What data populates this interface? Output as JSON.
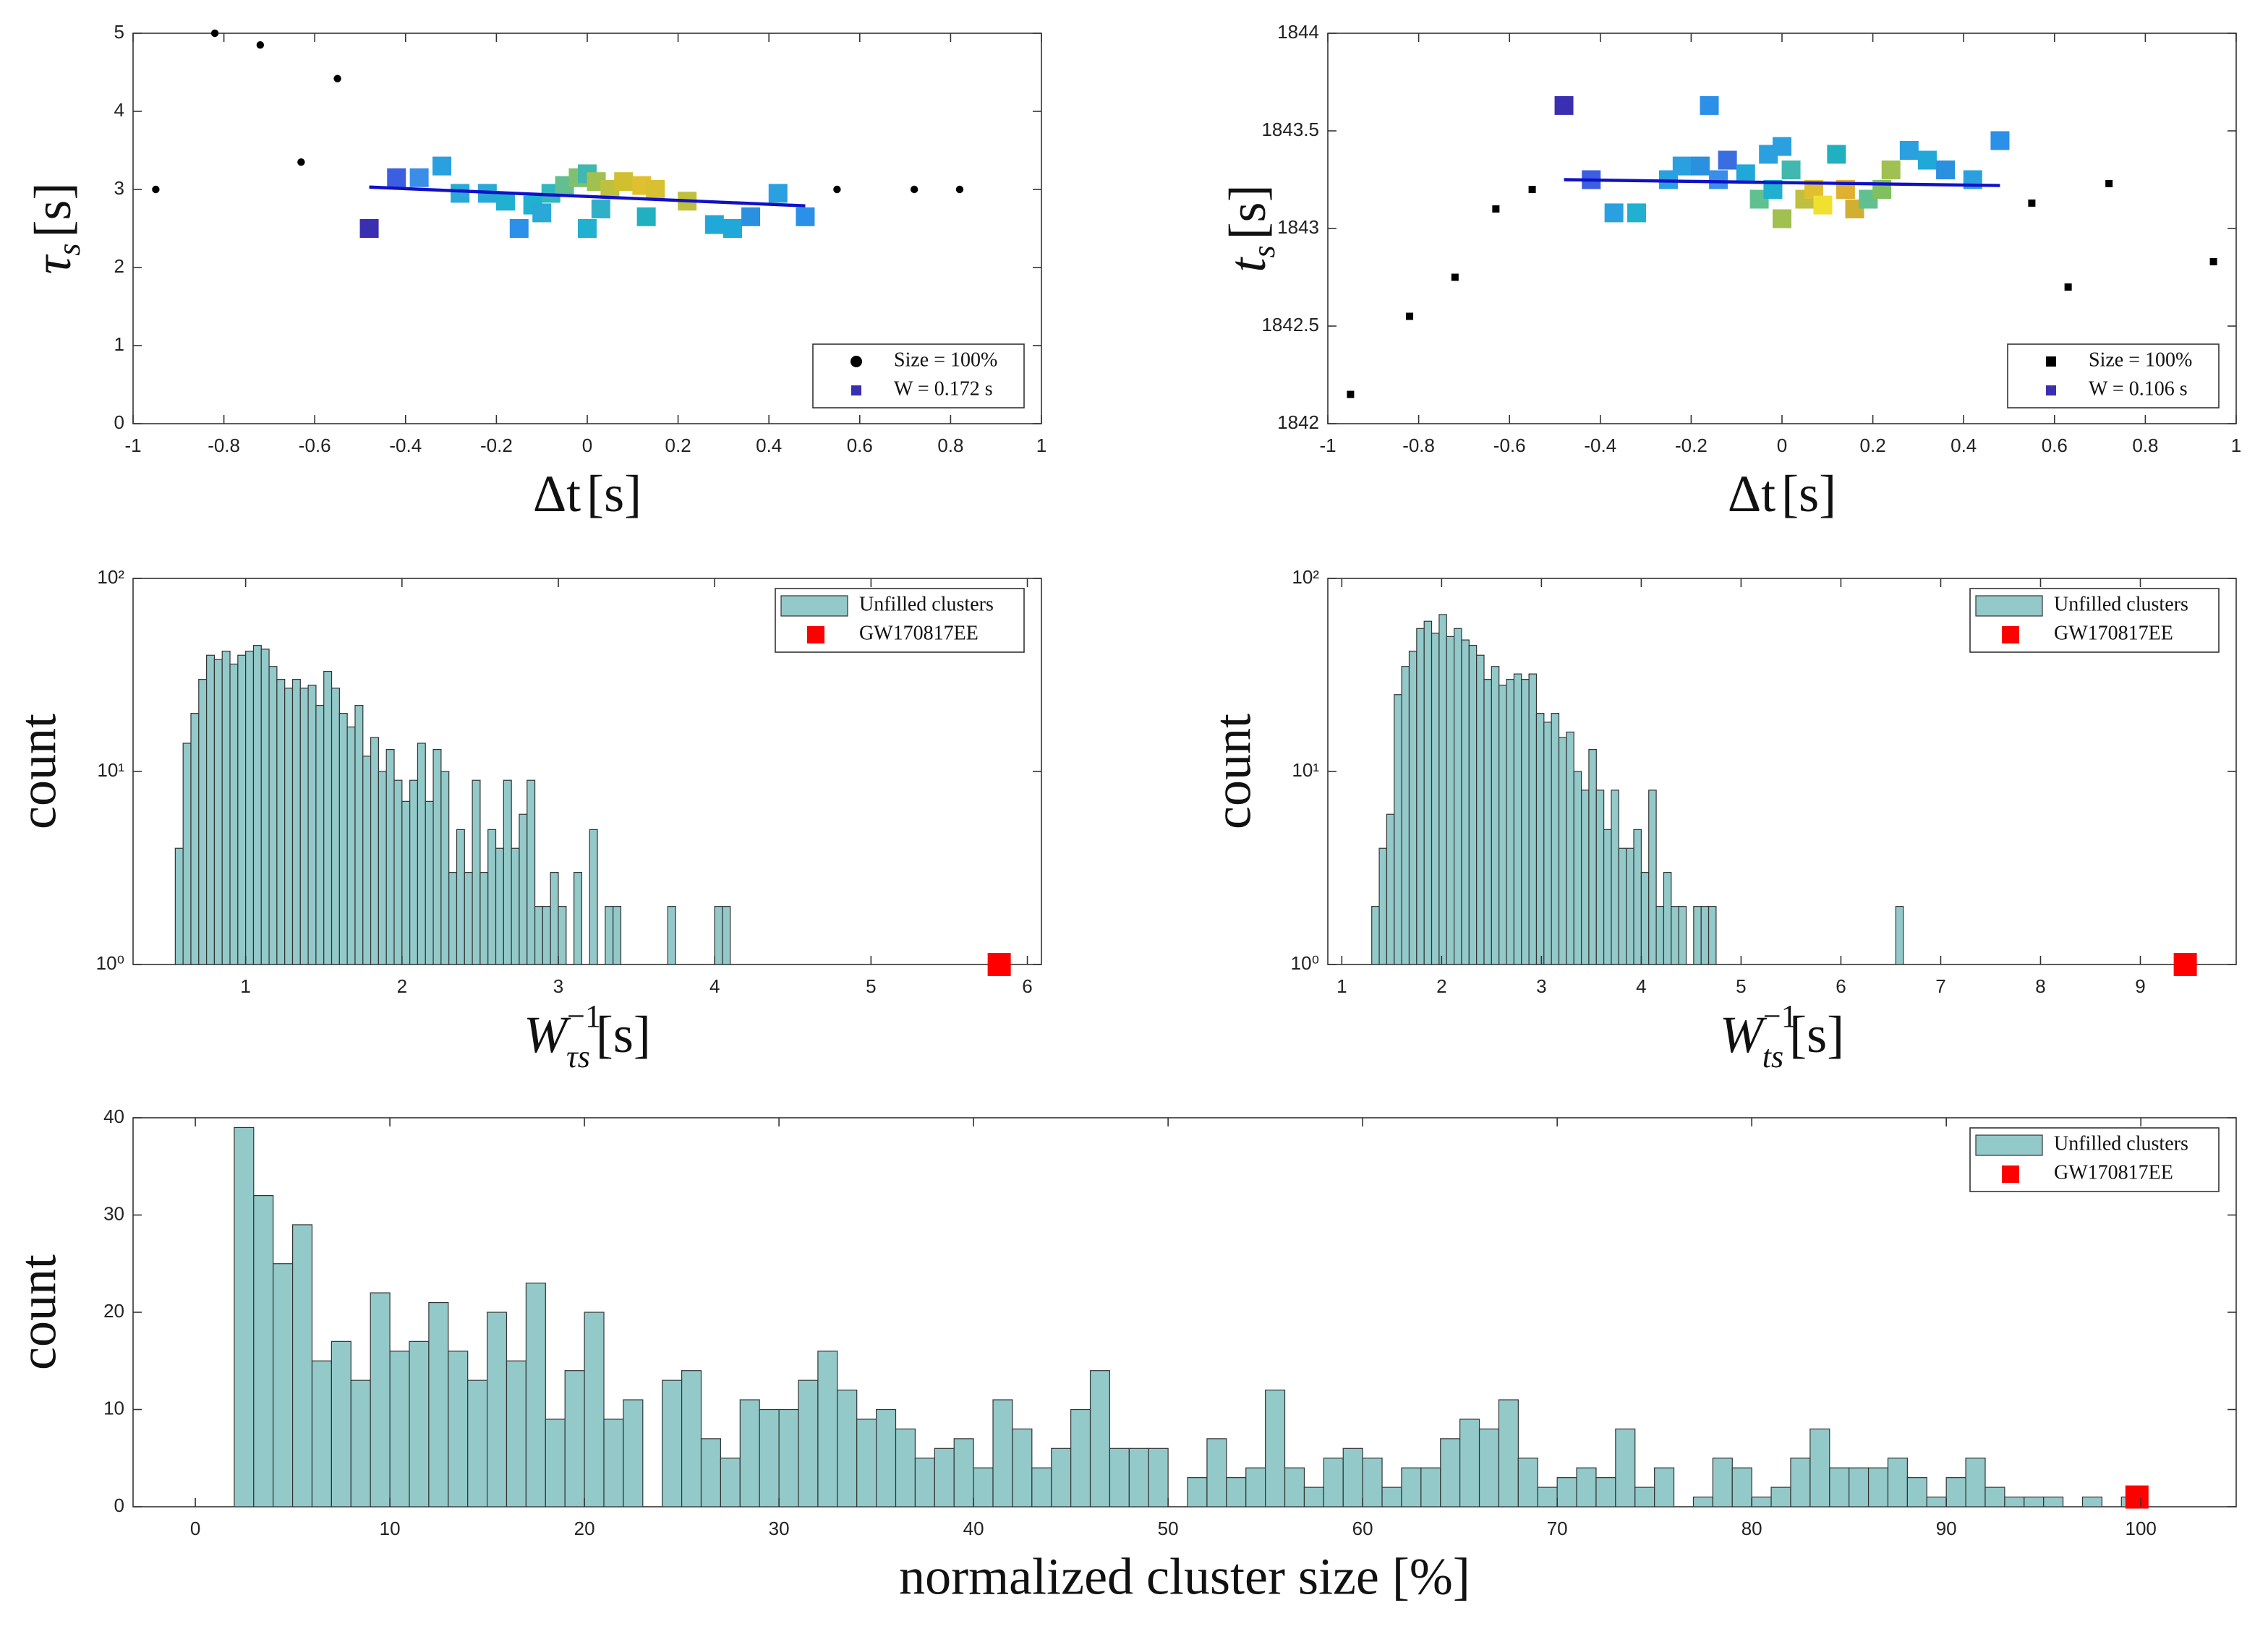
{
  "chart_data": [
    {
      "type": "scatter",
      "xlim": [
        -1,
        1
      ],
      "ylim": [
        0,
        5
      ],
      "xticks": [
        -1,
        -0.8,
        -0.6,
        -0.4,
        -0.2,
        0,
        0.2,
        0.4,
        0.6,
        0.8,
        1
      ],
      "yticks": [
        0,
        1,
        2,
        3,
        4,
        5
      ],
      "xlabel": {
        "text": "Δt",
        "unit": "[s]"
      },
      "ylabel": {
        "text": "τ",
        "sub": "s",
        "unit": "[s]"
      },
      "legend": "lower right",
      "series": [
        {
          "name": "Size = 100%",
          "color": "#000000",
          "marker": "circle",
          "x": [
            -0.95,
            -0.82,
            -0.72,
            -0.63,
            -0.55,
            0.55,
            0.72,
            0.82
          ],
          "y": [
            3.0,
            5.0,
            4.85,
            3.35,
            4.42,
            3.0,
            3.0,
            3.0
          ]
        },
        {
          "name": "W = 0.172 s",
          "color": "#3a2fb0",
          "marker": "square",
          "x": [
            -0.48,
            -0.42,
            -0.37,
            -0.32,
            -0.28,
            -0.22,
            -0.18,
            -0.15,
            -0.12,
            -0.1,
            -0.08,
            -0.05,
            -0.02,
            0,
            0,
            0.02,
            0.03,
            0.05,
            0.08,
            0.12,
            0.13,
            0.15,
            0.22,
            0.28,
            0.32,
            0.36,
            0.42,
            0.48
          ],
          "y": [
            2.5,
            3.15,
            3.15,
            3.3,
            2.95,
            2.95,
            2.85,
            2.5,
            2.8,
            2.7,
            2.95,
            3.05,
            3.15,
            2.5,
            3.2,
            3.1,
            2.75,
            3.0,
            3.1,
            3.05,
            2.65,
            3.0,
            2.85,
            2.55,
            2.5,
            2.65,
            2.95,
            2.65
          ],
          "colors": [
            "#3a2fb0",
            "#3b5fe0",
            "#3a8ee8",
            "#2aa0e0",
            "#2aa8d8",
            "#2aa8d8",
            "#20b0d0",
            "#2a90e8",
            "#20b0d0",
            "#2aa8d8",
            "#30b8c0",
            "#60c090",
            "#80c070",
            "#20b0d0",
            "#40b8b0",
            "#a0c050",
            "#30b0c8",
            "#c0c040",
            "#d0c030",
            "#e0c030",
            "#20b0c0",
            "#d8c030",
            "#c0c040",
            "#20a8d8",
            "#20a8d8",
            "#2a90e0",
            "#2aa0e0",
            "#2a90e8"
          ]
        }
      ],
      "fit": {
        "x": [
          -0.48,
          0.48
        ],
        "y": [
          3.03,
          2.79
        ],
        "color": "#1010c8"
      }
    },
    {
      "type": "scatter",
      "xlim": [
        -1,
        1
      ],
      "ylim": [
        1842,
        1844
      ],
      "xticks": [
        -1,
        -0.8,
        -0.6,
        -0.4,
        -0.2,
        0,
        0.2,
        0.4,
        0.6,
        0.8,
        1
      ],
      "yticks": [
        1842,
        1842.5,
        1843,
        1843.5,
        1844
      ],
      "xlabel": {
        "text": "Δt",
        "unit": "[s]"
      },
      "ylabel": {
        "text": "t",
        "sub": "s",
        "unit": "[s]"
      },
      "legend": "lower right",
      "series": [
        {
          "name": "Size = 100%",
          "color": "#000000",
          "marker": "square",
          "x": [
            -0.95,
            -0.82,
            -0.72,
            -0.63,
            -0.55,
            0.55,
            0.63,
            0.72,
            0.95
          ],
          "y": [
            1842.15,
            1842.55,
            1842.75,
            1843.1,
            1843.2,
            1843.13,
            1842.7,
            1843.23,
            1842.83
          ]
        },
        {
          "name": "W = 0.106 s",
          "color": "#3a2fb0",
          "marker": "square",
          "x": [
            -0.48,
            -0.42,
            -0.37,
            -0.32,
            -0.25,
            -0.22,
            -0.18,
            -0.16,
            -0.14,
            -0.12,
            -0.08,
            -0.05,
            -0.03,
            -0.02,
            0,
            0,
            0.02,
            0.05,
            0.07,
            0.09,
            0.12,
            0.14,
            0.16,
            0.19,
            0.22,
            0.24,
            0.28,
            0.32,
            0.36,
            0.42,
            0.48
          ],
          "y": [
            1843.63,
            1843.25,
            1843.08,
            1843.08,
            1843.25,
            1843.32,
            1843.32,
            1843.63,
            1843.25,
            1843.35,
            1843.28,
            1843.15,
            1843.38,
            1843.2,
            1843.42,
            1843.05,
            1843.3,
            1843.15,
            1843.2,
            1843.12,
            1843.38,
            1843.2,
            1843.1,
            1843.15,
            1843.2,
            1843.3,
            1843.4,
            1843.35,
            1843.3,
            1843.25,
            1843.45
          ],
          "colors": [
            "#3a2fb0",
            "#3b5fe0",
            "#2aa0e0",
            "#20b0d0",
            "#2aa0e0",
            "#2aa0e0",
            "#2a90e0",
            "#2a90e8",
            "#3a8ee8",
            "#3a6ee0",
            "#20a8d8",
            "#60c090",
            "#2aa0e0",
            "#20b0d0",
            "#2aa0e0",
            "#a0c050",
            "#40b8b0",
            "#c0c040",
            "#e0c030",
            "#f0e030",
            "#20b0c0",
            "#e0b030",
            "#d0b030",
            "#60c090",
            "#80c060",
            "#a0c050",
            "#2aa0e0",
            "#20a8d8",
            "#2a90e0",
            "#2aa0e0",
            "#2a90e8"
          ]
        }
      ],
      "fit": {
        "x": [
          -0.48,
          0.48
        ],
        "y": [
          1843.25,
          1843.22
        ],
        "color": "#1010c8"
      }
    },
    {
      "type": "histogram",
      "xlim": [
        0.28,
        6.09
      ],
      "ylim": [
        1,
        100
      ],
      "log_y": true,
      "xticks": [
        1,
        2,
        3,
        4,
        5,
        6
      ],
      "yticks": [
        {
          "value": 1,
          "label": "10⁰"
        },
        {
          "value": 10,
          "label": "10¹"
        },
        {
          "value": 100,
          "label": "10²"
        }
      ],
      "xlabel": {
        "text": "W",
        "sup": "−1",
        "sub": "τs",
        "unit": "[s]"
      },
      "ylabel": "count",
      "legend": "upper right",
      "name": "Unfilled clusters",
      "color": "#93c9c9",
      "bins": [
        0.55,
        0.6,
        0.65,
        0.7,
        0.75,
        0.8,
        0.85,
        0.9,
        0.95,
        1,
        1.05,
        1.1,
        1.15,
        1.2,
        1.25,
        1.3,
        1.35,
        1.4,
        1.45,
        1.5,
        1.55,
        1.6,
        1.65,
        1.7,
        1.75,
        1.8,
        1.85,
        1.9,
        1.95,
        2,
        2.05,
        2.1,
        2.15,
        2.2,
        2.25,
        2.3,
        2.35,
        2.4,
        2.45,
        2.5,
        2.55,
        2.6,
        2.65,
        2.7,
        2.75,
        2.8,
        2.85,
        2.9,
        2.95,
        3,
        3.05,
        3.1,
        3.15,
        3.2,
        3.25,
        3.3,
        3.35,
        3.4,
        3.45,
        3.5,
        3.55,
        3.6,
        3.65,
        3.7,
        3.75,
        3.8,
        3.85,
        3.9,
        3.95,
        4,
        4.05,
        4.1
      ],
      "values": [
        4,
        14,
        20,
        30,
        40,
        38,
        42,
        36,
        40,
        42,
        45,
        43,
        35,
        30,
        27,
        30,
        27,
        28,
        22,
        33,
        27,
        20,
        17,
        22,
        12,
        15,
        10,
        13,
        9,
        7,
        9,
        14,
        7,
        13,
        10,
        3,
        5,
        3,
        9,
        3,
        5,
        4,
        9,
        4,
        6,
        9,
        2,
        2,
        3,
        2,
        0,
        3,
        0,
        5,
        0,
        2,
        2,
        0,
        0,
        0,
        0,
        0,
        0,
        2,
        0,
        0,
        0,
        0,
        0,
        2,
        2
      ],
      "marker": {
        "name": "GW170817EE",
        "x": 5.82,
        "y": 1,
        "color": "#ff0000"
      }
    },
    {
      "type": "histogram",
      "xlim": [
        0.86,
        9.96
      ],
      "ylim": [
        1,
        100
      ],
      "log_y": true,
      "xticks": [
        1,
        2,
        3,
        4,
        5,
        6,
        7,
        8,
        9
      ],
      "yticks": [
        {
          "value": 1,
          "label": "10⁰"
        },
        {
          "value": 10,
          "label": "10¹"
        },
        {
          "value": 100,
          "label": "10²"
        }
      ],
      "xlabel": {
        "text": "W",
        "sup": "−1",
        "sub": "ts",
        "unit": "[s]"
      },
      "ylabel": "count",
      "legend": "upper right",
      "name": "Unfilled clusters",
      "color": "#93c9c9",
      "bins": [
        1.3,
        1.375,
        1.45,
        1.525,
        1.6,
        1.675,
        1.75,
        1.825,
        1.9,
        1.975,
        2.05,
        2.125,
        2.2,
        2.275,
        2.35,
        2.425,
        2.5,
        2.575,
        2.65,
        2.725,
        2.8,
        2.875,
        2.95,
        3.025,
        3.1,
        3.175,
        3.25,
        3.325,
        3.4,
        3.475,
        3.55,
        3.625,
        3.7,
        3.775,
        3.85,
        3.925,
        4,
        4.075,
        4.15,
        4.225,
        4.3,
        4.375,
        4.45,
        4.525,
        4.6,
        4.675,
        4.75,
        4.825,
        4.9,
        4.975,
        5.05,
        5.125,
        5.2,
        5.275,
        5.35,
        5.425,
        5.5,
        5.575,
        5.65,
        5.725,
        5.8,
        5.875,
        5.95,
        6.025,
        6.1,
        6.175,
        6.25,
        6.325,
        6.4,
        6.475,
        6.55,
        6.625
      ],
      "values": [
        2,
        4,
        6,
        25,
        35,
        42,
        55,
        60,
        52,
        65,
        50,
        55,
        48,
        45,
        40,
        30,
        35,
        28,
        30,
        32,
        30,
        32,
        20,
        18,
        20,
        15,
        16,
        10,
        8,
        13,
        8,
        5,
        8,
        4,
        4,
        5,
        3,
        8,
        2,
        3,
        2,
        2,
        0,
        2,
        2,
        2,
        0,
        0,
        0,
        0,
        0,
        0,
        0,
        0,
        0,
        0,
        0,
        0,
        0,
        0,
        0,
        0,
        0,
        0,
        0,
        0,
        0,
        0,
        0,
        0,
        2
      ],
      "marker": {
        "name": "GW170817EE",
        "x": 9.45,
        "y": 1,
        "color": "#ff0000"
      }
    },
    {
      "type": "histogram",
      "xlim": [
        -3.2,
        104.9
      ],
      "ylim": [
        0,
        40
      ],
      "xticks": [
        0,
        10,
        20,
        30,
        40,
        50,
        60,
        70,
        80,
        90,
        100
      ],
      "yticks": [
        0,
        10,
        20,
        30,
        40
      ],
      "xlabel": "normalized cluster size [%]",
      "ylabel": "count",
      "legend": "upper right",
      "name": "Unfilled clusters",
      "color": "#93c9c9",
      "bins": [
        2,
        3,
        4,
        5,
        6,
        7,
        8,
        9,
        10,
        11,
        12,
        13,
        14,
        15,
        16,
        17,
        18,
        19,
        20,
        21,
        22,
        23,
        24,
        25,
        26,
        27,
        28,
        29,
        30,
        31,
        32,
        33,
        34,
        35,
        36,
        37,
        38,
        39,
        40,
        41,
        42,
        43,
        44,
        45,
        46,
        47,
        48,
        49,
        50,
        51,
        52,
        53,
        54,
        55,
        56,
        57,
        58,
        59,
        60,
        61,
        62,
        63,
        64,
        65,
        66,
        67,
        68,
        69,
        70,
        71,
        72,
        73,
        74,
        75,
        76,
        77,
        78,
        79,
        80,
        81,
        82,
        83,
        84,
        85,
        86,
        87,
        88,
        89,
        90,
        91,
        92,
        93,
        94,
        95,
        96,
        97,
        98,
        99,
        100
      ],
      "values": [
        39,
        32,
        25,
        29,
        15,
        17,
        13,
        22,
        16,
        17,
        21,
        16,
        13,
        20,
        15,
        23,
        9,
        14,
        20,
        9,
        11,
        0,
        13,
        14,
        7,
        5,
        11,
        10,
        10,
        13,
        16,
        12,
        9,
        10,
        8,
        5,
        6,
        7,
        4,
        11,
        8,
        4,
        6,
        10,
        14,
        6,
        6,
        6,
        0,
        3,
        7,
        3,
        4,
        12,
        4,
        2,
        5,
        6,
        5,
        2,
        4,
        4,
        7,
        9,
        8,
        11,
        5,
        2,
        3,
        4,
        3,
        8,
        2,
        4,
        0,
        1,
        5,
        4,
        1,
        2,
        5,
        8,
        4,
        4,
        4,
        5,
        3,
        1,
        3,
        5,
        2,
        1,
        1,
        1,
        0,
        1,
        0,
        1
      ],
      "marker": {
        "name": "GW170817EE",
        "x": 99.8,
        "y": 1,
        "color": "#ff0000"
      }
    }
  ]
}
